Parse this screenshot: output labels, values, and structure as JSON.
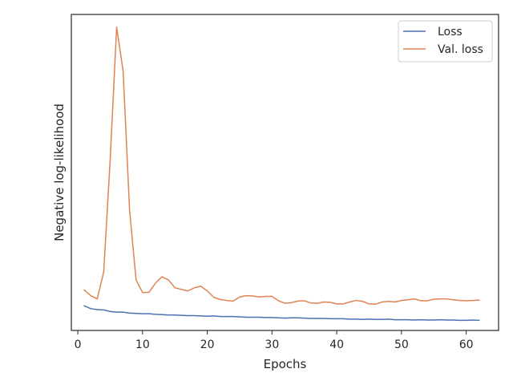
{
  "chart_data": {
    "type": "line",
    "title": "",
    "xlabel": "Epochs",
    "ylabel": "Negative log-likelihood",
    "xlim": [
      -1.0,
      65.0
    ],
    "ylim": [
      0.0,
      1.0
    ],
    "y_ticks_shown": false,
    "x_ticks": [
      0,
      10,
      20,
      30,
      40,
      50,
      60
    ],
    "x_tick_labels": [
      "0",
      "10",
      "20",
      "30",
      "40",
      "50",
      "60"
    ],
    "grid": false,
    "legend_position": "top-right",
    "x": [
      1,
      2,
      3,
      4,
      5,
      6,
      7,
      8,
      9,
      10,
      11,
      12,
      13,
      14,
      15,
      16,
      17,
      18,
      19,
      20,
      21,
      22,
      23,
      24,
      25,
      26,
      27,
      28,
      29,
      30,
      31,
      32,
      33,
      34,
      35,
      36,
      37,
      38,
      39,
      40,
      41,
      42,
      43,
      44,
      45,
      46,
      47,
      48,
      49,
      50,
      51,
      52,
      53,
      54,
      55,
      56,
      57,
      58,
      59,
      60,
      61,
      62
    ],
    "series": [
      {
        "name": "Loss",
        "color": "#4c72b0",
        "values": [
          0.078,
          0.069,
          0.066,
          0.065,
          0.06,
          0.058,
          0.058,
          0.055,
          0.054,
          0.053,
          0.053,
          0.051,
          0.05,
          0.049,
          0.049,
          0.048,
          0.047,
          0.047,
          0.046,
          0.045,
          0.046,
          0.044,
          0.044,
          0.044,
          0.043,
          0.042,
          0.042,
          0.042,
          0.041,
          0.041,
          0.04,
          0.039,
          0.04,
          0.04,
          0.039,
          0.038,
          0.038,
          0.038,
          0.037,
          0.037,
          0.037,
          0.036,
          0.036,
          0.035,
          0.036,
          0.035,
          0.035,
          0.036,
          0.034,
          0.034,
          0.034,
          0.033,
          0.034,
          0.033,
          0.033,
          0.034,
          0.033,
          0.033,
          0.032,
          0.032,
          0.033,
          0.032
        ]
      },
      {
        "name": "Val. loss",
        "color": "#dd8452",
        "values": [
          0.128,
          0.11,
          0.1,
          0.185,
          0.54,
          0.96,
          0.82,
          0.38,
          0.16,
          0.12,
          0.121,
          0.15,
          0.17,
          0.16,
          0.135,
          0.13,
          0.125,
          0.135,
          0.14,
          0.125,
          0.105,
          0.098,
          0.095,
          0.093,
          0.106,
          0.11,
          0.109,
          0.106,
          0.108,
          0.108,
          0.094,
          0.086,
          0.088,
          0.093,
          0.094,
          0.087,
          0.086,
          0.09,
          0.089,
          0.084,
          0.084,
          0.09,
          0.095,
          0.092,
          0.084,
          0.083,
          0.09,
          0.092,
          0.09,
          0.095,
          0.097,
          0.1,
          0.094,
          0.094,
          0.099,
          0.1,
          0.1,
          0.097,
          0.095,
          0.094,
          0.095,
          0.096
        ]
      }
    ]
  }
}
